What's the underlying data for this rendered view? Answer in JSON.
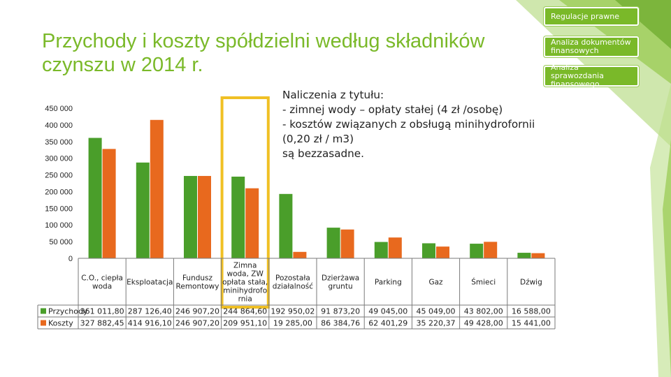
{
  "slide": {
    "title": "Przychody i koszty spółdzielni według składników czynszu w 2014 r.",
    "note_lines": [
      "Naliczenia z tytułu:",
      "- zimnej wody – opłaty stałej (4 zł /osobę)",
      "- kosztów związanych z obsługą minihydrofornii",
      "(0,20 zł / m3)",
      "są bezzasadne."
    ]
  },
  "nav": {
    "items": [
      {
        "label": "Regulacje prawne"
      },
      {
        "label": "Analiza dokumentów finansowych"
      },
      {
        "label": "Analiza sprawozdania finansowego"
      }
    ]
  },
  "colors": {
    "accent": "#7ab929",
    "przychody": "#4a9e2a",
    "koszty": "#e8691e",
    "highlight": "#f0c024"
  },
  "chart_data": {
    "type": "bar",
    "categories": [
      "C.O., ciepła woda",
      "Eksploatacja",
      "Fundusz Remontowy",
      "Zimna woda, ZW opłata stała, minihydrofornia",
      "Pozostała działalność",
      "Dzierżawa gruntu",
      "Parking",
      "Gaz",
      "Śmieci",
      "Dźwig"
    ],
    "category_label_lines": [
      [
        "C.O., ciepła",
        "woda"
      ],
      [
        "Eksploatacja"
      ],
      [
        "Fundusz",
        "Remontowy"
      ],
      [
        "Zimna",
        "woda, ZW",
        "opłata stała,",
        "minihydrofo",
        "rnia"
      ],
      [
        "Pozostała",
        "działalność"
      ],
      [
        "Dzierżawa",
        "gruntu"
      ],
      [
        "Parking"
      ],
      [
        "Gaz"
      ],
      [
        "Śmieci"
      ],
      [
        "Dźwig"
      ]
    ],
    "series": [
      {
        "name": "Przychody",
        "values": [
          361011.8,
          287126.4,
          246907.2,
          244864.6,
          192950.02,
          91873.2,
          49045.0,
          45049.0,
          43802.0,
          16588.0
        ],
        "table_labels": [
          "361 011,80",
          "287 126,40",
          "246 907,20",
          "244 864,60",
          "192 950,02",
          "91 873,20",
          "49 045,00",
          "45 049,00",
          "43 802,00",
          "16 588,00"
        ]
      },
      {
        "name": "Koszty",
        "values": [
          327882.45,
          414916.1,
          246907.2,
          209951.1,
          19285.0,
          86384.76,
          62401.29,
          35220.37,
          49428.0,
          15441.0
        ],
        "table_labels": [
          "327 882,45",
          "414 916,10",
          "246 907,20",
          "209 951,10",
          "19 285,00",
          "86 384,76",
          "62 401,29",
          "35 220,37",
          "49 428,00",
          "15 441,00"
        ]
      }
    ],
    "y_ticks": [
      "0",
      "50 000",
      "100 000",
      "150 000",
      "200 000",
      "250 000",
      "300 000",
      "350 000",
      "400 000",
      "450 000"
    ],
    "ylim": [
      0,
      450000
    ],
    "highlighted_category_index": 3,
    "legend": "data table",
    "grid": false
  }
}
